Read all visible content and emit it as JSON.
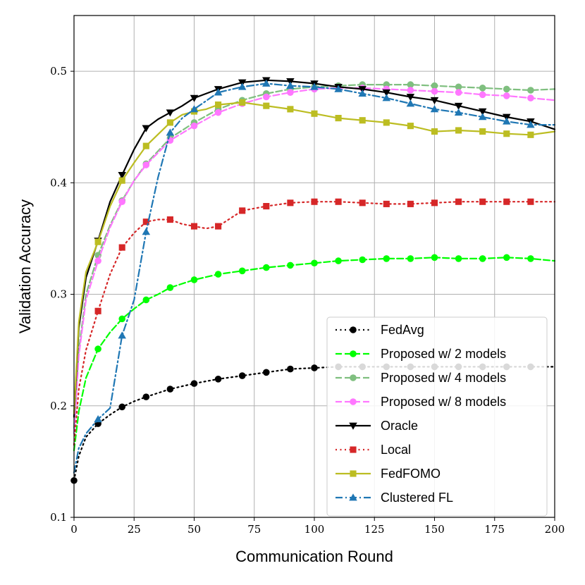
{
  "chart_data": {
    "type": "line",
    "title": "",
    "xlabel": "Communication Round",
    "ylabel": "Validation Accuracy",
    "xlim": [
      0,
      200
    ],
    "ylim": [
      0.1,
      0.55
    ],
    "xticks": [
      0,
      25,
      50,
      75,
      100,
      125,
      150,
      175,
      200
    ],
    "yticks": [
      0.1,
      0.2,
      0.3,
      0.4,
      0.5
    ],
    "xtick_labels": [
      "0",
      "25",
      "50",
      "75",
      "100",
      "125",
      "150",
      "175",
      "200"
    ],
    "ytick_labels": [
      "0.1",
      "0.2",
      "0.3",
      "0.4",
      "0.5"
    ],
    "grid": true,
    "legend_position": "lower-right",
    "series": [
      {
        "name": "FedAvg",
        "color": "#000000",
        "dash": "dotted",
        "marker": "circle",
        "x": [
          0,
          2,
          5,
          10,
          15,
          20,
          25,
          30,
          40,
          50,
          60,
          70,
          80,
          90,
          100,
          110,
          120,
          130,
          140,
          150,
          160,
          170,
          180,
          190,
          200
        ],
        "y": [
          0.133,
          0.155,
          0.172,
          0.184,
          0.192,
          0.199,
          0.204,
          0.208,
          0.215,
          0.22,
          0.224,
          0.227,
          0.23,
          0.233,
          0.234,
          0.235,
          0.235,
          0.235,
          0.235,
          0.235,
          0.235,
          0.235,
          0.235,
          0.235,
          0.235
        ],
        "marker_x": [
          0,
          10,
          20,
          30,
          40,
          50,
          60,
          70,
          80,
          90,
          100,
          110,
          120,
          130,
          140,
          150,
          160,
          170,
          180,
          190
        ]
      },
      {
        "name": "Proposed w/ 2 models",
        "color": "#00ff00",
        "dash": "dashed",
        "marker": "circle",
        "x": [
          0,
          2,
          5,
          10,
          15,
          20,
          25,
          30,
          35,
          40,
          50,
          60,
          70,
          80,
          90,
          100,
          110,
          120,
          130,
          140,
          150,
          160,
          170,
          180,
          190,
          200
        ],
        "y": [
          0.16,
          0.195,
          0.225,
          0.251,
          0.266,
          0.278,
          0.287,
          0.295,
          0.3,
          0.306,
          0.313,
          0.318,
          0.321,
          0.324,
          0.326,
          0.328,
          0.33,
          0.331,
          0.332,
          0.332,
          0.333,
          0.332,
          0.332,
          0.333,
          0.332,
          0.33
        ],
        "marker_x": [
          10,
          20,
          30,
          40,
          50,
          60,
          70,
          80,
          90,
          100,
          110,
          120,
          130,
          140,
          150,
          160,
          170,
          180,
          190
        ]
      },
      {
        "name": "Proposed w/ 4 models",
        "color": "#7fbf7f",
        "dash": "dashed",
        "marker": "circle",
        "x": [
          0,
          2,
          5,
          10,
          15,
          20,
          25,
          30,
          40,
          50,
          60,
          70,
          80,
          90,
          100,
          110,
          120,
          130,
          140,
          150,
          160,
          170,
          180,
          190,
          200
        ],
        "y": [
          0.18,
          0.25,
          0.3,
          0.335,
          0.362,
          0.384,
          0.402,
          0.417,
          0.44,
          0.454,
          0.466,
          0.474,
          0.48,
          0.484,
          0.486,
          0.487,
          0.488,
          0.488,
          0.488,
          0.487,
          0.486,
          0.485,
          0.484,
          0.483,
          0.484
        ],
        "marker_x": [
          10,
          20,
          30,
          40,
          50,
          60,
          70,
          80,
          90,
          100,
          110,
          120,
          130,
          140,
          150,
          160,
          170,
          180,
          190
        ]
      },
      {
        "name": "Proposed w/ 8 models",
        "color": "#ff77ff",
        "dash": "dashed",
        "marker": "circle",
        "x": [
          0,
          2,
          5,
          10,
          15,
          20,
          25,
          30,
          40,
          50,
          60,
          70,
          80,
          90,
          100,
          110,
          120,
          130,
          140,
          150,
          160,
          170,
          180,
          190,
          200
        ],
        "y": [
          0.175,
          0.245,
          0.295,
          0.33,
          0.36,
          0.383,
          0.402,
          0.416,
          0.438,
          0.451,
          0.463,
          0.471,
          0.477,
          0.481,
          0.484,
          0.485,
          0.485,
          0.484,
          0.483,
          0.482,
          0.481,
          0.479,
          0.478,
          0.476,
          0.474
        ],
        "marker_x": [
          10,
          20,
          30,
          40,
          50,
          60,
          70,
          80,
          90,
          100,
          110,
          120,
          130,
          140,
          150,
          160,
          170,
          180,
          190
        ]
      },
      {
        "name": "Oracle",
        "color": "#000000",
        "dash": "solid",
        "marker": "triangle-down",
        "x": [
          0,
          2,
          5,
          10,
          15,
          20,
          25,
          30,
          35,
          40,
          45,
          50,
          60,
          70,
          80,
          90,
          100,
          110,
          120,
          130,
          140,
          150,
          160,
          170,
          180,
          190,
          200
        ],
        "y": [
          0.19,
          0.27,
          0.315,
          0.348,
          0.383,
          0.407,
          0.43,
          0.449,
          0.457,
          0.463,
          0.469,
          0.476,
          0.484,
          0.49,
          0.492,
          0.491,
          0.489,
          0.486,
          0.484,
          0.481,
          0.477,
          0.474,
          0.469,
          0.464,
          0.459,
          0.455,
          0.448
        ],
        "marker_x": [
          10,
          20,
          30,
          40,
          50,
          60,
          70,
          80,
          90,
          100,
          110,
          120,
          130,
          140,
          150,
          160,
          170,
          180,
          190
        ]
      },
      {
        "name": "Local",
        "color": "#d62728",
        "dash": "dotted",
        "marker": "square",
        "x": [
          0,
          2,
          5,
          10,
          15,
          20,
          25,
          30,
          35,
          40,
          45,
          50,
          55,
          60,
          65,
          70,
          80,
          90,
          100,
          110,
          120,
          130,
          140,
          150,
          160,
          170,
          180,
          190,
          200
        ],
        "y": [
          0.165,
          0.215,
          0.25,
          0.285,
          0.318,
          0.342,
          0.355,
          0.365,
          0.367,
          0.367,
          0.363,
          0.361,
          0.359,
          0.361,
          0.368,
          0.375,
          0.379,
          0.382,
          0.383,
          0.383,
          0.382,
          0.381,
          0.381,
          0.382,
          0.383,
          0.383,
          0.383,
          0.383,
          0.383
        ],
        "marker_x": [
          10,
          20,
          30,
          40,
          50,
          60,
          70,
          80,
          90,
          100,
          110,
          120,
          130,
          140,
          150,
          160,
          170,
          180,
          190
        ]
      },
      {
        "name": "FedFOMO",
        "color": "#bcbd22",
        "dash": "solid",
        "marker": "square",
        "x": [
          0,
          2,
          5,
          10,
          15,
          20,
          25,
          30,
          40,
          45,
          50,
          55,
          60,
          70,
          80,
          90,
          100,
          110,
          120,
          130,
          140,
          150,
          160,
          170,
          180,
          190,
          200
        ],
        "y": [
          0.193,
          0.275,
          0.32,
          0.347,
          0.379,
          0.402,
          0.418,
          0.433,
          0.454,
          0.461,
          0.464,
          0.466,
          0.47,
          0.472,
          0.469,
          0.466,
          0.462,
          0.458,
          0.456,
          0.454,
          0.451,
          0.446,
          0.447,
          0.446,
          0.444,
          0.443,
          0.446
        ],
        "marker_x": [
          10,
          20,
          30,
          40,
          50,
          60,
          70,
          80,
          90,
          100,
          110,
          120,
          130,
          140,
          150,
          160,
          170,
          180,
          190
        ]
      },
      {
        "name": "Clustered FL",
        "color": "#1f77b4",
        "dash": "dashdot",
        "marker": "triangle-up",
        "x": [
          0,
          2,
          5,
          10,
          15,
          20,
          25,
          30,
          35,
          40,
          45,
          50,
          60,
          70,
          80,
          90,
          100,
          110,
          120,
          130,
          140,
          150,
          160,
          170,
          180,
          190,
          200
        ],
        "y": [
          0.14,
          0.162,
          0.175,
          0.188,
          0.198,
          0.263,
          0.295,
          0.356,
          0.405,
          0.445,
          0.458,
          0.466,
          0.481,
          0.486,
          0.489,
          0.487,
          0.486,
          0.484,
          0.48,
          0.476,
          0.471,
          0.466,
          0.463,
          0.459,
          0.455,
          0.452,
          0.452
        ],
        "marker_x": [
          10,
          20,
          30,
          40,
          50,
          60,
          70,
          80,
          90,
          100,
          110,
          120,
          130,
          140,
          150,
          160,
          170,
          180,
          190
        ]
      }
    ]
  }
}
